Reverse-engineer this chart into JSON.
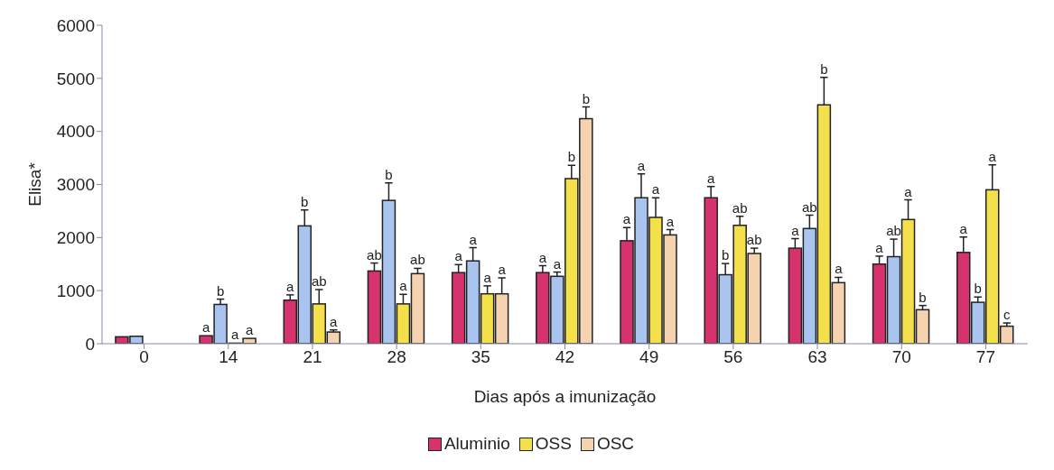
{
  "chart_data": {
    "type": "bar",
    "xlabel": "Dias após a imunização",
    "ylabel": "Elisa*",
    "categories": [
      "0",
      "14",
      "21",
      "28",
      "35",
      "42",
      "49",
      "56",
      "63",
      "70",
      "77"
    ],
    "series": [
      {
        "name": "Aluminio",
        "color": "#d6336e",
        "values": [
          130,
          150,
          820,
          1370,
          1340,
          1340,
          1940,
          2750,
          1800,
          1500,
          1720
        ],
        "errors": [
          null,
          null,
          [
            820,
            920
          ],
          [
            1370,
            1520
          ],
          [
            1340,
            1490
          ],
          [
            1340,
            1470
          ],
          [
            1940,
            2190
          ],
          [
            2750,
            2960
          ],
          [
            1800,
            1980
          ],
          [
            1500,
            1650
          ],
          [
            1720,
            2010
          ]
        ],
        "value_labels": [
          null,
          "a",
          "a",
          "ab",
          "a",
          "a",
          "a",
          "a",
          "a",
          "a",
          "a"
        ]
      },
      {
        "color": "#a9c4ee",
        "values": [
          140,
          740,
          2220,
          2700,
          1560,
          1270,
          2750,
          1300,
          2170,
          1640,
          780
        ],
        "errors": [
          null,
          [
            740,
            840
          ],
          [
            2220,
            2520
          ],
          [
            2700,
            3030
          ],
          [
            1560,
            1810
          ],
          [
            1270,
            1350
          ],
          [
            2750,
            3200
          ],
          [
            1300,
            1510
          ],
          [
            2170,
            2420
          ],
          [
            1640,
            1970
          ],
          [
            780,
            880
          ]
        ],
        "value_labels": [
          null,
          "b",
          "b",
          "b",
          "a",
          "a",
          "a",
          "b",
          "ab",
          "ab",
          "b"
        ]
      },
      {
        "name": "OSS",
        "color": "#f4e04a",
        "values": [
          null,
          10,
          750,
          750,
          940,
          3110,
          2380,
          2230,
          4500,
          2340,
          2900
        ],
        "errors": [
          null,
          null,
          [
            750,
            1020
          ],
          [
            750,
            930
          ],
          [
            940,
            1090
          ],
          [
            3110,
            3360
          ],
          [
            2380,
            2750
          ],
          [
            2230,
            2400
          ],
          [
            4500,
            5020
          ],
          [
            2340,
            2710
          ],
          [
            2900,
            3370
          ]
        ],
        "value_labels": [
          null,
          "a",
          "ab",
          "a",
          "a",
          "b",
          "a",
          "ab",
          "b",
          "a",
          "a"
        ]
      },
      {
        "name": "OSC",
        "color": "#f5d2b0",
        "values": [
          null,
          100,
          220,
          1320,
          940,
          4240,
          2050,
          1700,
          1150,
          640,
          330
        ],
        "errors": [
          null,
          null,
          [
            220,
            260
          ],
          [
            1320,
            1420
          ],
          [
            940,
            1240
          ],
          [
            4240,
            4460
          ],
          [
            2050,
            2150
          ],
          [
            1700,
            1800
          ],
          [
            1150,
            1250
          ],
          [
            640,
            720
          ],
          [
            330,
            390
          ]
        ],
        "value_labels": [
          null,
          "a",
          "a",
          "ab",
          "a",
          "b",
          "a",
          "ab",
          "a",
          "b",
          "c"
        ]
      }
    ],
    "ylim": [
      0,
      6000
    ],
    "yticks": [
      0,
      1000,
      2000,
      3000,
      4000,
      5000,
      6000
    ],
    "legend": "bottom"
  }
}
